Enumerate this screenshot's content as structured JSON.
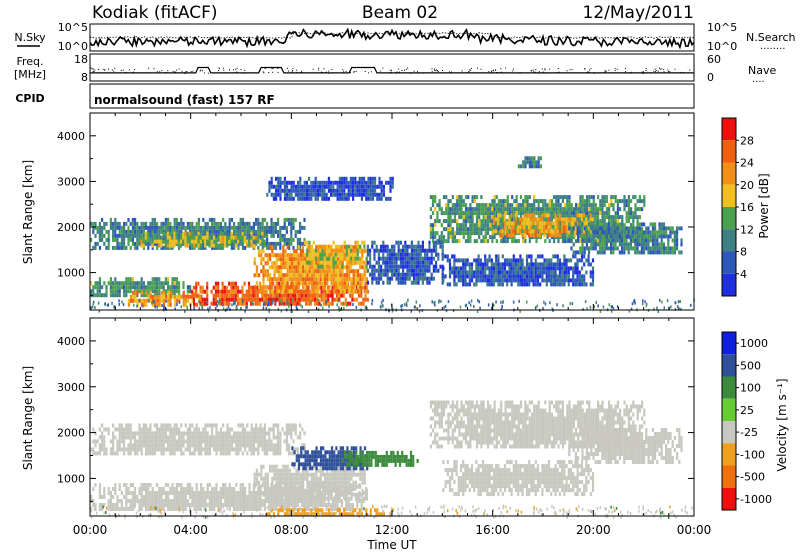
{
  "header": {
    "station": "Kodiak (fitACF)",
    "beam": "Beam 02",
    "date": "12/May/2011"
  },
  "labels": {
    "nsky": "N.Sky",
    "nsearch": "N.Search",
    "nsearch_dots": "........",
    "freq": "Freq.",
    "freq_unit": "[MHz]",
    "nave": "Nave",
    "nave_dots": "....",
    "cpid": "CPID",
    "cpid_value": "normalsound (fast) 157 RF"
  },
  "noise_axis": {
    "left_ticks": [
      "10^5",
      "10^0"
    ],
    "right_ticks": [
      "10^5",
      "10^0"
    ]
  },
  "freq_axis": {
    "left_ticks": [
      "18",
      "8"
    ],
    "right_ticks": [
      "60",
      "0"
    ]
  },
  "colors": {
    "power": [
      "#1f2fe0",
      "#2d57b8",
      "#3d7f82",
      "#4aa04e",
      "#f0c020",
      "#f09018",
      "#f06010",
      "#ee1010"
    ],
    "velocity": [
      "#1020e0",
      "#30509a",
      "#3c8a3c",
      "#66cc33",
      "#c8c8c0",
      "#f0a020",
      "#f07010",
      "#ee1010"
    ]
  },
  "chart_data": [
    {
      "type": "heatmap",
      "title": "",
      "xlabel": "Time UT",
      "ylabel": "Slant Range [km]",
      "x_ticks": [
        "00:00",
        "04:00",
        "08:00",
        "12:00",
        "16:00",
        "20:00",
        "00:00"
      ],
      "x_range_hours": [
        0,
        24
      ],
      "y_ticks": [
        1000,
        2000,
        3000,
        4000
      ],
      "ylim": [
        180,
        4500
      ],
      "colorbar": {
        "label": "Power [dB]",
        "ticks": [
          4,
          8,
          12,
          16,
          20,
          24,
          28
        ],
        "range": [
          0,
          32
        ],
        "colors": [
          "#1f2fe0",
          "#2d57b8",
          "#3d7f82",
          "#4aa04e",
          "#f0c020",
          "#f09018",
          "#f06010",
          "#ee1010"
        ]
      },
      "echo_regions": [
        {
          "t_start": 0,
          "t_end": 8.5,
          "range_low": 1550,
          "range_high": 2200,
          "value": 10
        },
        {
          "t_start": 2,
          "t_end": 7,
          "range_low": 1600,
          "range_high": 1900,
          "value": 16
        },
        {
          "t_start": 0,
          "t_end": 4,
          "range_low": 500,
          "range_high": 900,
          "value": 12
        },
        {
          "t_start": 1.5,
          "t_end": 4.5,
          "range_low": 300,
          "range_high": 600,
          "value": 22
        },
        {
          "t_start": 4,
          "t_end": 11,
          "range_low": 300,
          "range_high": 800,
          "value": 26
        },
        {
          "t_start": 6.5,
          "t_end": 11,
          "range_low": 600,
          "range_high": 1600,
          "value": 22
        },
        {
          "t_start": 8.5,
          "t_end": 11,
          "range_low": 1100,
          "range_high": 1700,
          "value": 18
        },
        {
          "t_start": 11,
          "t_end": 14,
          "range_low": 800,
          "range_high": 1700,
          "value": 6
        },
        {
          "t_start": 13.5,
          "t_end": 22,
          "range_low": 1700,
          "range_high": 2700,
          "value": 12
        },
        {
          "t_start": 16,
          "t_end": 20,
          "range_low": 1800,
          "range_high": 2300,
          "value": 20
        },
        {
          "t_start": 19,
          "t_end": 23.5,
          "range_low": 1400,
          "range_high": 2100,
          "value": 10
        },
        {
          "t_start": 14,
          "t_end": 20,
          "range_low": 700,
          "range_high": 1400,
          "value": 6
        },
        {
          "t_start": 7,
          "t_end": 12,
          "range_low": 2600,
          "range_high": 3100,
          "value": 5
        },
        {
          "t_start": 17,
          "t_end": 18,
          "range_low": 3300,
          "range_high": 3550,
          "value": 10
        }
      ]
    },
    {
      "type": "heatmap",
      "title": "",
      "xlabel": "Time UT",
      "ylabel": "Slant Range [km]",
      "x_ticks": [
        "00:00",
        "04:00",
        "08:00",
        "12:00",
        "16:00",
        "20:00",
        "00:00"
      ],
      "x_range_hours": [
        0,
        24
      ],
      "y_ticks": [
        1000,
        2000,
        3000,
        4000
      ],
      "ylim": [
        180,
        4500
      ],
      "colorbar": {
        "label": "Velocity [m s⁻¹]",
        "ticks": [
          1000,
          500,
          100,
          25,
          -25,
          -100,
          -500,
          -1000
        ],
        "colors": [
          "#1020e0",
          "#30509a",
          "#3c8a3c",
          "#66cc33",
          "#c8c8c0",
          "#f0a020",
          "#f07010",
          "#ee1010"
        ]
      },
      "echo_regions": [
        {
          "t_start": 0,
          "t_end": 8.5,
          "range_low": 1550,
          "range_high": 2200,
          "value": 0
        },
        {
          "t_start": 0,
          "t_end": 11,
          "range_low": 300,
          "range_high": 900,
          "value": 0
        },
        {
          "t_start": 6.5,
          "t_end": 11,
          "range_low": 600,
          "range_high": 1300,
          "value": 0
        },
        {
          "t_start": 8,
          "t_end": 11,
          "range_low": 1250,
          "range_high": 1700,
          "value": 150
        },
        {
          "t_start": 10,
          "t_end": 13,
          "range_low": 1300,
          "range_high": 1600,
          "value": 60
        },
        {
          "t_start": 13.5,
          "t_end": 22,
          "range_low": 1700,
          "range_high": 2700,
          "value": 0
        },
        {
          "t_start": 19,
          "t_end": 23.5,
          "range_low": 1400,
          "range_high": 2100,
          "value": 0
        },
        {
          "t_start": 14,
          "t_end": 20,
          "range_low": 700,
          "range_high": 1400,
          "value": 0
        },
        {
          "t_start": 7,
          "t_end": 12,
          "range_low": 180,
          "range_high": 350,
          "value": -80
        }
      ]
    }
  ]
}
